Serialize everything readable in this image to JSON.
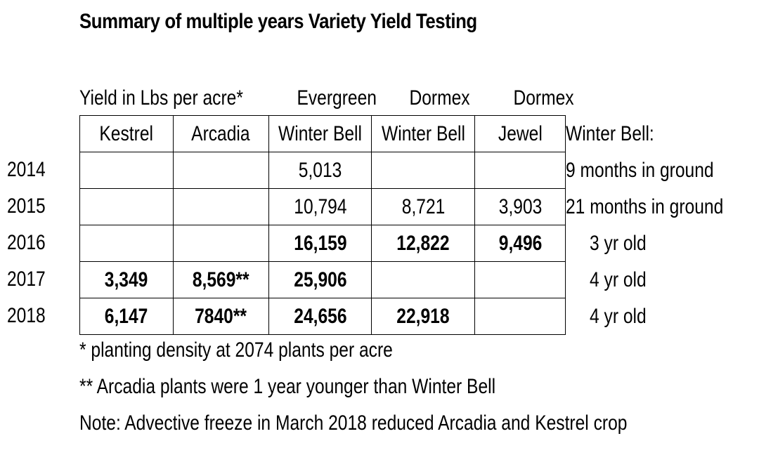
{
  "title": "Summary of multiple years Variety Yield Testing",
  "header_top": {
    "yield_label": "Yield in Lbs per acre*",
    "col3": "Evergreen",
    "col4": "Dormex",
    "col5": "Dormex"
  },
  "columns": [
    "Kestrel",
    "Arcadia",
    "Winter Bell",
    "Winter Bell",
    "Jewel"
  ],
  "side_header": "Winter Bell:",
  "rows": [
    {
      "year": "2014",
      "cells": [
        "",
        "",
        "5,013",
        "",
        ""
      ],
      "bold": false,
      "note": "9 months in ground"
    },
    {
      "year": "2015",
      "cells": [
        "",
        "",
        "10,794",
        "8,721",
        "3,903"
      ],
      "bold": false,
      "note": "21 months in ground"
    },
    {
      "year": "2016",
      "cells": [
        "",
        "",
        "16,159",
        "12,822",
        "9,496"
      ],
      "bold": true,
      "note": "3 yr old"
    },
    {
      "year": "2017",
      "cells": [
        "3,349",
        "8,569**",
        "25,906",
        "",
        ""
      ],
      "bold": true,
      "note": "4 yr old"
    },
    {
      "year": "2018",
      "cells": [
        "6,147",
        "7840**",
        "24,656",
        "22,918",
        ""
      ],
      "bold": true,
      "note": "4 yr old"
    }
  ],
  "footnotes": [
    "* planting density at 2074 plants per acre",
    "** Arcadia plants were 1 year younger than Winter Bell",
    "Note: Advective freeze in March 2018 reduced Arcadia and Kestrel crop"
  ]
}
